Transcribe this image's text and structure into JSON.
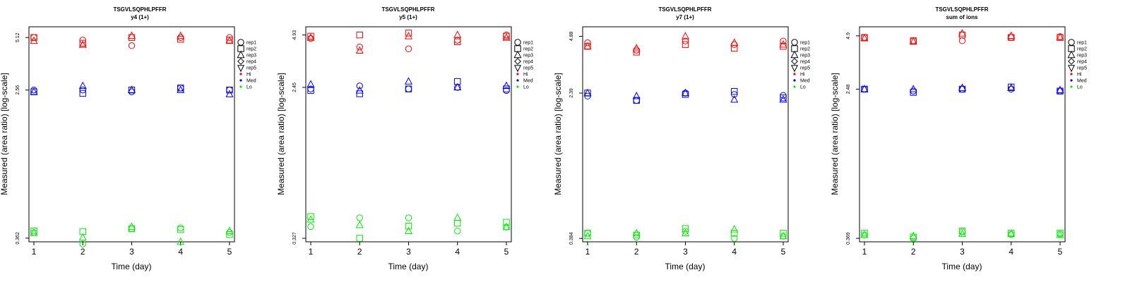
{
  "chart_data": [
    {
      "type": "scatter",
      "title": "TSGVLSQPHLPFFR",
      "subtitle": "y4 (1+)",
      "xlabel": "Time (day)",
      "ylabel": "Measured (area ratio) [log-scale]",
      "log_y": true,
      "x_ticks": [
        "1",
        "2",
        "3",
        "4",
        "5"
      ],
      "y_ticks": [
        {
          "value": 0.362,
          "label": "0.362"
        },
        {
          "value": 2.56,
          "label": "2.56"
        },
        {
          "value": 5.12,
          "label": "5.12"
        }
      ],
      "ylim": [
        0.345,
        5.9
      ],
      "legend": {
        "position": "right",
        "shapes": [
          "rep1",
          "rep2",
          "rep3",
          "rep4",
          "rep5"
        ],
        "levels": [
          {
            "name": "Hi",
            "color": "#ff0000"
          },
          {
            "name": "Med",
            "color": "#0000ff"
          },
          {
            "name": "Lo",
            "color": "#00ee00"
          }
        ]
      },
      "series": [
        {
          "level": "Hi",
          "rep": "rep1",
          "x": [
            1,
            2,
            3,
            4,
            5
          ],
          "y": [
            5.12,
            4.95,
            4.6,
            5.12,
            5.12
          ]
        },
        {
          "level": "Hi",
          "rep": "rep2",
          "x": [
            1,
            2,
            3,
            4,
            5
          ],
          "y": [
            5.12,
            4.75,
            5.12,
            5.0,
            4.95
          ]
        },
        {
          "level": "Hi",
          "rep": "rep3",
          "x": [
            1,
            2,
            3,
            4,
            5
          ],
          "y": [
            4.9,
            4.65,
            5.23,
            5.23,
            4.9
          ]
        },
        {
          "level": "Med",
          "rep": "rep1",
          "x": [
            1,
            2,
            3,
            4,
            5
          ],
          "y": [
            2.56,
            2.56,
            2.5,
            2.63,
            2.56
          ]
        },
        {
          "level": "Med",
          "rep": "rep2",
          "x": [
            1,
            2,
            3,
            4,
            5
          ],
          "y": [
            2.5,
            2.45,
            2.56,
            2.63,
            2.56
          ]
        },
        {
          "level": "Med",
          "rep": "rep3",
          "x": [
            1,
            2,
            3,
            4,
            5
          ],
          "y": [
            2.5,
            2.7,
            2.56,
            2.56,
            2.42
          ]
        },
        {
          "level": "Lo",
          "rep": "rep1",
          "x": [
            1,
            2,
            3,
            4,
            5
          ],
          "y": [
            0.39,
            0.335,
            0.41,
            0.415,
            0.39
          ]
        },
        {
          "level": "Lo",
          "rep": "rep2",
          "x": [
            1,
            2,
            3,
            4,
            5
          ],
          "y": [
            0.398,
            0.395,
            0.41,
            0.405,
            0.38
          ]
        },
        {
          "level": "Lo",
          "rep": "rep3",
          "x": [
            1,
            2,
            3,
            4,
            5
          ],
          "y": [
            0.388,
            0.365,
            0.42,
            0.345,
            0.398
          ]
        }
      ]
    },
    {
      "type": "scatter",
      "title": "TSGVLSQPHLPFFR",
      "subtitle": "y5 (1+)",
      "xlabel": "Time (day)",
      "ylabel": "Measured (area ratio) [log-scale]",
      "log_y": true,
      "x_ticks": [
        "1",
        "2",
        "3",
        "4",
        "5"
      ],
      "y_ticks": [
        {
          "value": 0.327,
          "label": "0.327"
        },
        {
          "value": 2.45,
          "label": "2.45"
        },
        {
          "value": 4.93,
          "label": "4.93"
        }
      ],
      "ylim": [
        0.312,
        5.5
      ],
      "legend": {
        "position": "right",
        "shapes": [
          "rep1",
          "rep2",
          "rep3",
          "rep4",
          "rep5"
        ],
        "levels": [
          {
            "name": "Hi",
            "color": "#ff0000"
          },
          {
            "name": "Med",
            "color": "#0000ff"
          },
          {
            "name": "Lo",
            "color": "#00ee00"
          }
        ]
      },
      "series": [
        {
          "level": "Hi",
          "rep": "rep1",
          "x": [
            1,
            2,
            3,
            4,
            5
          ],
          "y": [
            4.7,
            4.2,
            4.1,
            4.6,
            4.93
          ]
        },
        {
          "level": "Hi",
          "rep": "rep2",
          "x": [
            1,
            2,
            3,
            4,
            5
          ],
          "y": [
            4.85,
            4.93,
            5.06,
            4.5,
            4.85
          ]
        },
        {
          "level": "Hi",
          "rep": "rep3",
          "x": [
            1,
            2,
            3,
            4,
            5
          ],
          "y": [
            4.75,
            4.0,
            4.85,
            4.93,
            4.75
          ]
        },
        {
          "level": "Med",
          "rep": "rep1",
          "x": [
            1,
            2,
            3,
            4,
            5
          ],
          "y": [
            2.4,
            2.5,
            2.4,
            2.45,
            2.35
          ]
        },
        {
          "level": "Med",
          "rep": "rep2",
          "x": [
            1,
            2,
            3,
            4,
            5
          ],
          "y": [
            2.35,
            2.25,
            2.4,
            2.65,
            2.4
          ]
        },
        {
          "level": "Med",
          "rep": "rep3",
          "x": [
            1,
            2,
            3,
            4,
            5
          ],
          "y": [
            2.55,
            2.35,
            2.65,
            2.45,
            2.5
          ]
        },
        {
          "level": "Lo",
          "rep": "rep1",
          "x": [
            1,
            2,
            3,
            4,
            5
          ],
          "y": [
            0.382,
            0.43,
            0.43,
            0.36,
            0.38
          ]
        },
        {
          "level": "Lo",
          "rep": "rep2",
          "x": [
            1,
            2,
            3,
            4,
            5
          ],
          "y": [
            0.437,
            0.327,
            0.385,
            0.4,
            0.405
          ]
        },
        {
          "level": "Lo",
          "rep": "rep3",
          "x": [
            1,
            2,
            3,
            4,
            5
          ],
          "y": [
            0.42,
            0.39,
            0.36,
            0.43,
            0.38
          ]
        }
      ]
    },
    {
      "type": "scatter",
      "title": "TSGVLSQPHLPFFR",
      "subtitle": "y7 (1+)",
      "xlabel": "Time (day)",
      "ylabel": "Measured (area ratio) [log-scale]",
      "log_y": true,
      "x_ticks": [
        "1",
        "2",
        "3",
        "4",
        "5"
      ],
      "y_ticks": [
        {
          "value": 0.384,
          "label": "0.384"
        },
        {
          "value": 2.39,
          "label": "2.39"
        },
        {
          "value": 4.88,
          "label": "4.88"
        }
      ],
      "ylim": [
        0.368,
        5.5
      ],
      "legend": {
        "position": "right",
        "shapes": [
          "rep1",
          "rep2",
          "rep3",
          "rep4",
          "rep5"
        ],
        "levels": [
          {
            "name": "Hi",
            "color": "#ff0000"
          },
          {
            "name": "Med",
            "color": "#0000ff"
          },
          {
            "name": "Lo",
            "color": "#00ee00"
          }
        ]
      },
      "series": [
        {
          "level": "Hi",
          "rep": "rep1",
          "x": [
            1,
            2,
            3,
            4,
            5
          ],
          "y": [
            4.5,
            4.1,
            4.6,
            4.4,
            4.6
          ]
        },
        {
          "level": "Hi",
          "rep": "rep2",
          "x": [
            1,
            2,
            3,
            4,
            5
          ],
          "y": [
            4.3,
            4.0,
            4.4,
            4.2,
            4.3
          ]
        },
        {
          "level": "Hi",
          "rep": "rep3",
          "x": [
            1,
            2,
            3,
            4,
            5
          ],
          "y": [
            4.3,
            4.2,
            4.88,
            4.5,
            4.4
          ]
        },
        {
          "level": "Med",
          "rep": "rep1",
          "x": [
            1,
            2,
            3,
            4,
            5
          ],
          "y": [
            2.3,
            2.18,
            2.39,
            2.35,
            2.32
          ]
        },
        {
          "level": "Med",
          "rep": "rep2",
          "x": [
            1,
            2,
            3,
            4,
            5
          ],
          "y": [
            2.39,
            2.18,
            2.35,
            2.44,
            2.25
          ]
        },
        {
          "level": "Med",
          "rep": "rep3",
          "x": [
            1,
            2,
            3,
            4,
            5
          ],
          "y": [
            2.39,
            2.3,
            2.39,
            2.2,
            2.2
          ]
        },
        {
          "level": "Lo",
          "rep": "rep1",
          "x": [
            1,
            2,
            3,
            4,
            5
          ],
          "y": [
            0.41,
            0.39,
            0.42,
            0.384,
            0.395
          ]
        },
        {
          "level": "Lo",
          "rep": "rep2",
          "x": [
            1,
            2,
            3,
            4,
            5
          ],
          "y": [
            0.41,
            0.4,
            0.435,
            0.41,
            0.41
          ]
        },
        {
          "level": "Lo",
          "rep": "rep3",
          "x": [
            1,
            2,
            3,
            4,
            5
          ],
          "y": [
            0.395,
            0.41,
            0.41,
            0.43,
            0.395
          ]
        }
      ]
    },
    {
      "type": "scatter",
      "title": "TSGVLSQPHLPFFR",
      "subtitle": "sum of ions",
      "xlabel": "Time (day)",
      "ylabel": "Measured (area ratio) [log-scale]",
      "log_y": true,
      "x_ticks": [
        "1",
        "2",
        "3",
        "4",
        "5"
      ],
      "y_ticks": [
        {
          "value": 0.369,
          "label": "0.369"
        },
        {
          "value": 2.48,
          "label": "2.48"
        },
        {
          "value": 4.9,
          "label": "4.9"
        }
      ],
      "ylim": [
        0.353,
        5.5
      ],
      "legend": {
        "position": "right",
        "shapes": [
          "rep1",
          "rep2",
          "rep3",
          "rep4",
          "rep5"
        ],
        "levels": [
          {
            "name": "Hi",
            "color": "#ff0000"
          },
          {
            "name": "Med",
            "color": "#0000ff"
          },
          {
            "name": "Lo",
            "color": "#00ee00"
          }
        ]
      },
      "series": [
        {
          "level": "Hi",
          "rep": "rep1",
          "x": [
            1,
            2,
            3,
            4,
            5
          ],
          "y": [
            4.8,
            4.6,
            4.6,
            4.8,
            4.85
          ]
        },
        {
          "level": "Hi",
          "rep": "rep2",
          "x": [
            1,
            2,
            3,
            4,
            5
          ],
          "y": [
            4.8,
            4.6,
            4.95,
            4.8,
            4.8
          ]
        },
        {
          "level": "Hi",
          "rep": "rep3",
          "x": [
            1,
            2,
            3,
            4,
            5
          ],
          "y": [
            4.75,
            4.55,
            5.05,
            4.9,
            4.8
          ]
        },
        {
          "level": "Med",
          "rep": "rep1",
          "x": [
            1,
            2,
            3,
            4,
            5
          ],
          "y": [
            2.48,
            2.42,
            2.48,
            2.48,
            2.42
          ]
        },
        {
          "level": "Med",
          "rep": "rep2",
          "x": [
            1,
            2,
            3,
            4,
            5
          ],
          "y": [
            2.48,
            2.38,
            2.48,
            2.55,
            2.42
          ]
        },
        {
          "level": "Med",
          "rep": "rep3",
          "x": [
            1,
            2,
            3,
            4,
            5
          ],
          "y": [
            2.48,
            2.48,
            2.52,
            2.52,
            2.45
          ]
        },
        {
          "level": "Lo",
          "rep": "rep1",
          "x": [
            1,
            2,
            3,
            4,
            5
          ],
          "y": [
            0.385,
            0.369,
            0.4,
            0.388,
            0.39
          ]
        },
        {
          "level": "Lo",
          "rep": "rep2",
          "x": [
            1,
            2,
            3,
            4,
            5
          ],
          "y": [
            0.395,
            0.375,
            0.405,
            0.395,
            0.395
          ]
        },
        {
          "level": "Lo",
          "rep": "rep3",
          "x": [
            1,
            2,
            3,
            4,
            5
          ],
          "y": [
            0.385,
            0.38,
            0.39,
            0.39,
            0.385
          ]
        }
      ]
    }
  ]
}
